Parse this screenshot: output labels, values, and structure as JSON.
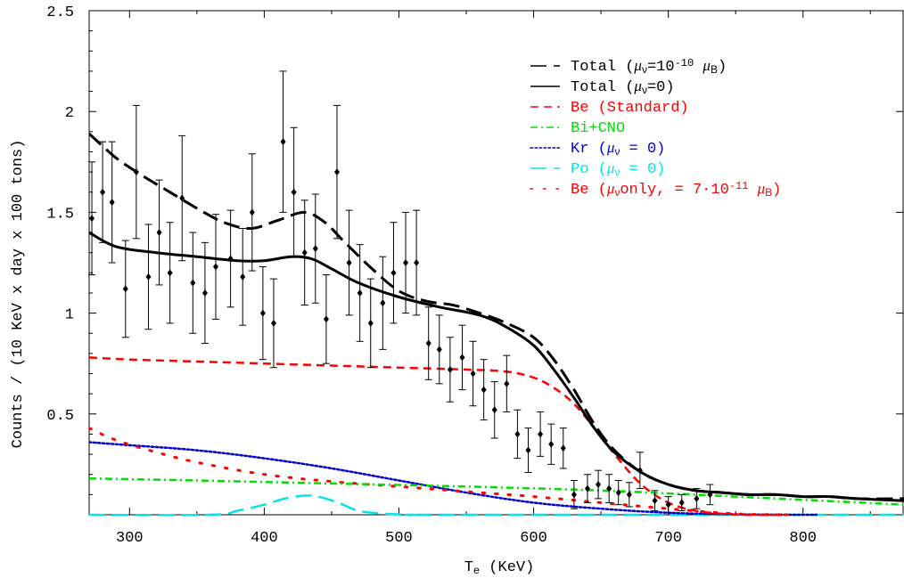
{
  "chart_data": {
    "type": "line",
    "xlabel_main": "T",
    "xlabel_sub": "e",
    "xlabel_rest": " (KeV)",
    "ylabel": "Counts / (10 KeV x day x 100 tons)",
    "xlim": [
      270,
      875
    ],
    "ylim": [
      0,
      2.5
    ],
    "grid": false,
    "legend_position": "top-right",
    "xticks": [
      300,
      400,
      500,
      600,
      700,
      800
    ],
    "yticks": [
      {
        "value": 0.5,
        "label": "0.5"
      },
      {
        "value": 1.0,
        "label": "1"
      },
      {
        "value": 1.5,
        "label": "1.5"
      },
      {
        "value": 2.0,
        "label": "2"
      },
      {
        "value": 2.5,
        "label": "2.5"
      }
    ],
    "colors": {
      "total_mu": "#000000",
      "total_0": "#000000",
      "be_standard": "#ff0000",
      "bi_cno": "#00dd00",
      "kr": "#0000cc",
      "po": "#00e5e5",
      "be_mu": "#ff0000"
    },
    "legend": [
      {
        "key": "total_mu",
        "parts": [
          [
            "Total (",
            ""
          ],
          [
            "μ",
            "i"
          ],
          [
            "ν",
            "sub"
          ],
          [
            "=10",
            ""
          ],
          [
            "-10",
            "sup"
          ],
          [
            " ",
            ""
          ],
          [
            "μ",
            "i"
          ],
          [
            "B",
            "sub"
          ],
          [
            ")",
            ""
          ]
        ]
      },
      {
        "key": "total_0",
        "parts": [
          [
            "Total (",
            ""
          ],
          [
            "μ",
            "i"
          ],
          [
            "ν",
            "sub"
          ],
          [
            "=0)",
            ""
          ]
        ]
      },
      {
        "key": "be_standard",
        "parts": [
          [
            "Be (Standard)",
            ""
          ]
        ]
      },
      {
        "key": "bi_cno",
        "parts": [
          [
            "Bi+CNO",
            ""
          ]
        ]
      },
      {
        "key": "kr",
        "parts": [
          [
            "Kr (",
            ""
          ],
          [
            "μ",
            "i"
          ],
          [
            "ν",
            "sub"
          ],
          [
            " = 0)",
            ""
          ]
        ]
      },
      {
        "key": "po",
        "parts": [
          [
            "Po (",
            ""
          ],
          [
            "μ",
            "i"
          ],
          [
            "ν",
            "sub"
          ],
          [
            " = 0)",
            ""
          ]
        ]
      },
      {
        "key": "be_mu",
        "parts": [
          [
            "Be (",
            ""
          ],
          [
            "μ",
            "i"
          ],
          [
            "ν",
            "sub"
          ],
          [
            "only, = 7·10",
            ""
          ],
          [
            "-11",
            "sup"
          ],
          [
            " ",
            ""
          ],
          [
            "μ",
            "i"
          ],
          [
            "B",
            "sub"
          ],
          [
            ")",
            ""
          ]
        ]
      }
    ],
    "series": [
      {
        "key": "total_mu",
        "style": "dash-long",
        "width": 3,
        "x": [
          270,
          290,
          310,
          330,
          350,
          370,
          390,
          410,
          430,
          445,
          460,
          480,
          500,
          520,
          540,
          560,
          580,
          600,
          615,
          630,
          645,
          660,
          680,
          700,
          720,
          740,
          760,
          780,
          800,
          820,
          840,
          875
        ],
        "y": [
          1.89,
          1.77,
          1.68,
          1.6,
          1.52,
          1.45,
          1.42,
          1.46,
          1.5,
          1.45,
          1.35,
          1.22,
          1.11,
          1.06,
          1.04,
          1.0,
          0.95,
          0.88,
          0.77,
          0.62,
          0.45,
          0.32,
          0.21,
          0.15,
          0.12,
          0.11,
          0.1,
          0.1,
          0.09,
          0.09,
          0.08,
          0.08
        ]
      },
      {
        "key": "total_0",
        "style": "solid",
        "width": 3,
        "x": [
          270,
          290,
          320,
          350,
          380,
          400,
          420,
          435,
          450,
          470,
          500,
          530,
          560,
          580,
          600,
          615,
          630,
          645,
          660,
          680,
          700,
          720,
          740,
          760,
          780,
          800,
          820,
          840,
          875
        ],
        "y": [
          1.4,
          1.33,
          1.3,
          1.28,
          1.26,
          1.26,
          1.28,
          1.27,
          1.22,
          1.15,
          1.08,
          1.03,
          0.99,
          0.93,
          0.84,
          0.72,
          0.58,
          0.43,
          0.31,
          0.21,
          0.15,
          0.12,
          0.11,
          0.1,
          0.1,
          0.09,
          0.09,
          0.08,
          0.07
        ]
      },
      {
        "key": "be_standard",
        "style": "dash",
        "width": 2.5,
        "x": [
          270,
          300,
          350,
          400,
          450,
          500,
          550,
          580,
          600,
          615,
          630,
          645,
          660,
          680,
          700,
          720,
          740,
          760,
          790
        ],
        "y": [
          0.78,
          0.77,
          0.76,
          0.75,
          0.74,
          0.73,
          0.72,
          0.71,
          0.68,
          0.63,
          0.55,
          0.43,
          0.3,
          0.15,
          0.06,
          0.02,
          0.005,
          0.0,
          0.0
        ]
      },
      {
        "key": "bi_cno",
        "style": "dashdot",
        "width": 2.5,
        "x": [
          270,
          350,
          450,
          550,
          650,
          750,
          875
        ],
        "y": [
          0.18,
          0.17,
          0.155,
          0.14,
          0.12,
          0.09,
          0.05
        ]
      },
      {
        "key": "kr",
        "style": "dot",
        "width": 2.5,
        "x": [
          270,
          300,
          350,
          400,
          450,
          500,
          550,
          600,
          650,
          700,
          750,
          800,
          810
        ],
        "y": [
          0.36,
          0.345,
          0.32,
          0.28,
          0.23,
          0.17,
          0.11,
          0.06,
          0.03,
          0.01,
          0.002,
          0.0,
          0.0
        ]
      },
      {
        "key": "po",
        "style": "dash-long",
        "width": 2.5,
        "x": [
          270,
          360,
          380,
          400,
          415,
          430,
          440,
          455,
          470,
          490,
          510,
          540,
          875
        ],
        "y": [
          0.0,
          0.0,
          0.02,
          0.05,
          0.08,
          0.095,
          0.09,
          0.06,
          0.02,
          0.005,
          0.0,
          0.0,
          0.0
        ]
      },
      {
        "key": "be_mu",
        "style": "sparse-dot",
        "width": 3,
        "x": [
          270,
          290,
          320,
          350,
          400,
          450,
          500,
          550,
          600,
          650,
          700,
          750,
          790
        ],
        "y": [
          0.43,
          0.37,
          0.31,
          0.26,
          0.2,
          0.165,
          0.14,
          0.115,
          0.09,
          0.06,
          0.03,
          0.005,
          0.0
        ]
      }
    ],
    "data_points": [
      {
        "x": 272,
        "y": 1.47,
        "err": 0.28
      },
      {
        "x": 280,
        "y": 1.6,
        "err": 0.25
      },
      {
        "x": 287,
        "y": 1.55,
        "err": 0.3
      },
      {
        "x": 297,
        "y": 1.12,
        "err": 0.24
      },
      {
        "x": 305,
        "y": 1.7,
        "err": 0.33
      },
      {
        "x": 314,
        "y": 1.18,
        "err": 0.26
      },
      {
        "x": 322,
        "y": 1.4,
        "err": 0.26
      },
      {
        "x": 330,
        "y": 1.2,
        "err": 0.25
      },
      {
        "x": 339,
        "y": 1.57,
        "err": 0.31
      },
      {
        "x": 347,
        "y": 1.15,
        "err": 0.25
      },
      {
        "x": 356,
        "y": 1.1,
        "err": 0.25
      },
      {
        "x": 364,
        "y": 1.23,
        "err": 0.26
      },
      {
        "x": 375,
        "y": 1.27,
        "err": 0.24
      },
      {
        "x": 384,
        "y": 1.18,
        "err": 0.24
      },
      {
        "x": 391,
        "y": 1.5,
        "err": 0.29
      },
      {
        "x": 399,
        "y": 1.0,
        "err": 0.23
      },
      {
        "x": 407,
        "y": 0.95,
        "err": 0.22
      },
      {
        "x": 414,
        "y": 1.85,
        "err": 0.35
      },
      {
        "x": 422,
        "y": 1.6,
        "err": 0.32
      },
      {
        "x": 430,
        "y": 1.3,
        "err": 0.26
      },
      {
        "x": 438,
        "y": 1.32,
        "err": 0.27
      },
      {
        "x": 446,
        "y": 0.97,
        "err": 0.22
      },
      {
        "x": 454,
        "y": 1.7,
        "err": 0.33
      },
      {
        "x": 463,
        "y": 1.25,
        "err": 0.26
      },
      {
        "x": 471,
        "y": 1.1,
        "err": 0.24
      },
      {
        "x": 479,
        "y": 0.95,
        "err": 0.22
      },
      {
        "x": 488,
        "y": 1.05,
        "err": 0.23
      },
      {
        "x": 496,
        "y": 1.2,
        "err": 0.25
      },
      {
        "x": 505,
        "y": 1.25,
        "err": 0.25
      },
      {
        "x": 513,
        "y": 1.25,
        "err": 0.26
      },
      {
        "x": 522,
        "y": 0.85,
        "err": 0.18
      },
      {
        "x": 530,
        "y": 0.82,
        "err": 0.17
      },
      {
        "x": 538,
        "y": 0.72,
        "err": 0.16
      },
      {
        "x": 547,
        "y": 0.78,
        "err": 0.16
      },
      {
        "x": 555,
        "y": 0.7,
        "err": 0.16
      },
      {
        "x": 563,
        "y": 0.62,
        "err": 0.15
      },
      {
        "x": 571,
        "y": 0.52,
        "err": 0.14
      },
      {
        "x": 580,
        "y": 0.65,
        "err": 0.14
      },
      {
        "x": 588,
        "y": 0.4,
        "err": 0.12
      },
      {
        "x": 596,
        "y": 0.32,
        "err": 0.11
      },
      {
        "x": 605,
        "y": 0.4,
        "err": 0.11
      },
      {
        "x": 613,
        "y": 0.35,
        "err": 0.1
      },
      {
        "x": 622,
        "y": 0.33,
        "err": 0.1
      },
      {
        "x": 630,
        "y": 0.1,
        "err": 0.07
      },
      {
        "x": 640,
        "y": 0.13,
        "err": 0.07
      },
      {
        "x": 648,
        "y": 0.15,
        "err": 0.07
      },
      {
        "x": 656,
        "y": 0.13,
        "err": 0.07
      },
      {
        "x": 663,
        "y": 0.11,
        "err": 0.06
      },
      {
        "x": 671,
        "y": 0.1,
        "err": 0.06
      },
      {
        "x": 679,
        "y": 0.22,
        "err": 0.09
      },
      {
        "x": 690,
        "y": 0.07,
        "err": 0.05
      },
      {
        "x": 700,
        "y": 0.05,
        "err": 0.04
      },
      {
        "x": 710,
        "y": 0.06,
        "err": 0.04
      },
      {
        "x": 721,
        "y": 0.08,
        "err": 0.05
      },
      {
        "x": 731,
        "y": 0.1,
        "err": 0.05
      }
    ]
  }
}
